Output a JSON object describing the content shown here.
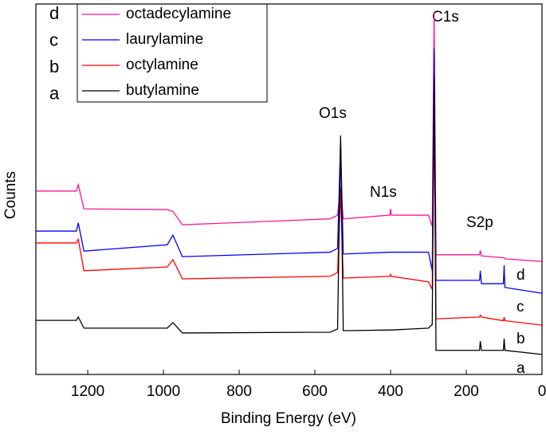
{
  "chart_data": {
    "type": "line",
    "x_label": "Binding Energy (eV)",
    "y_label": "Counts",
    "xlim": [
      1337,
      0
    ],
    "ylim": [
      0,
      100
    ],
    "xticks": [
      1200,
      1000,
      800,
      600,
      400,
      200,
      0
    ],
    "x": [
      1337,
      1230,
      1225,
      1210,
      990,
      975,
      950,
      560,
      540,
      532,
      525,
      402,
      400,
      398,
      300,
      290,
      285,
      280,
      165,
      163,
      160,
      102,
      100,
      98,
      0
    ],
    "series": [
      {
        "name": "octadecylamine",
        "color": "#ff1493",
        "tag": "d",
        "values": [
          49.5,
          49.5,
          51.2,
          44.7,
          44.5,
          44,
          40.4,
          42,
          43,
          50.5,
          42,
          43,
          44.7,
          43,
          43,
          40,
          97.8,
          32.3,
          32.3,
          33.5,
          32,
          31.5,
          31.5,
          31.2,
          30.5
        ]
      },
      {
        "name": "laurylamine",
        "color": "#0000ff",
        "tag": "c",
        "values": [
          38.7,
          38.7,
          40.9,
          33.3,
          35,
          37.6,
          31.8,
          33,
          34,
          63.4,
          32.5,
          33,
          33,
          33,
          33,
          28,
          88,
          25.4,
          25.4,
          28,
          24.5,
          24.5,
          29.5,
          23.5,
          21.9
        ]
      },
      {
        "name": "octylamine",
        "color": "#ff0000",
        "tag": "b",
        "values": [
          35.5,
          35.5,
          36.5,
          28,
          29,
          31,
          25.8,
          26.5,
          27.5,
          49.5,
          26,
          26.5,
          27,
          26.5,
          25,
          23,
          75,
          15,
          15.5,
          16,
          15.5,
          14.5,
          15.5,
          14.5,
          13.3
        ]
      },
      {
        "name": "butylamine",
        "color": "#000000",
        "tag": "a",
        "values": [
          14.6,
          14.6,
          15.5,
          12.5,
          12.5,
          14,
          11.2,
          11.4,
          12.3,
          64.5,
          11.8,
          12,
          12,
          12,
          12.5,
          13.5,
          80,
          6.5,
          6.5,
          9,
          6.5,
          6.5,
          9.7,
          6.5,
          5.4
        ]
      }
    ],
    "annotations": [
      "C1s",
      "O1s",
      "N1s",
      "S2p"
    ]
  }
}
